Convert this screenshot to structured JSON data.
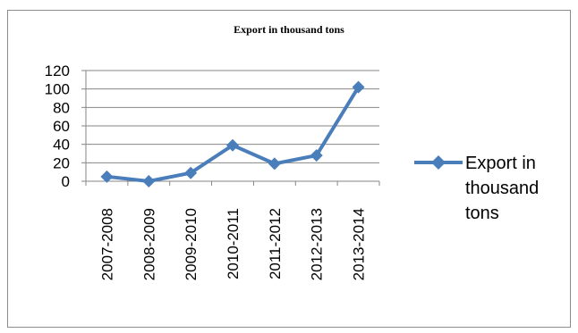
{
  "chart_data": {
    "type": "line",
    "title": "Export in thousand tons",
    "categories": [
      "2007-2008",
      "2008-2009",
      "2009-2010",
      "2010-2011",
      "2011-2012",
      "2012-2013",
      "2013-2014"
    ],
    "series": [
      {
        "name": "Export in thousand tons",
        "values": [
          5,
          0,
          9,
          39,
          19,
          28,
          102
        ],
        "color": "#4a7ebb",
        "marker": "diamond"
      }
    ],
    "yticks": [
      "0",
      "20",
      "40",
      "60",
      "80",
      "100",
      "120"
    ],
    "ylim": [
      0,
      120
    ],
    "xlabel": "",
    "ylabel": "",
    "grid": true,
    "legend": {
      "position": "right",
      "lines": [
        "Export in",
        "thousand",
        "tons"
      ]
    }
  }
}
